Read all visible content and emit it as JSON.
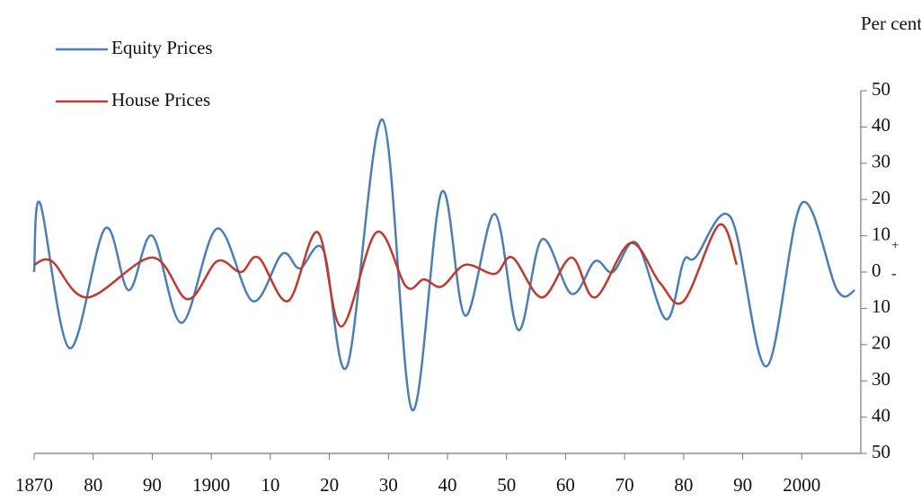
{
  "chart_data": {
    "type": "line",
    "y_label": "Per cent",
    "y_sign_labels": {
      "above": "+",
      "below": "-"
    },
    "legend": "top-left",
    "xlim": [
      1870,
      2010
    ],
    "xticks": [
      1870,
      {
        "value": 1880,
        "label": "80"
      },
      {
        "value": 1890,
        "label": "90"
      },
      1900,
      {
        "value": 1910,
        "label": "10"
      },
      {
        "value": 1920,
        "label": "20"
      },
      {
        "value": 1930,
        "label": "30"
      },
      {
        "value": 1940,
        "label": "40"
      },
      {
        "value": 1950,
        "label": "50"
      },
      {
        "value": 1960,
        "label": "60"
      },
      {
        "value": 1970,
        "label": "70"
      },
      {
        "value": 1980,
        "label": "80"
      },
      {
        "value": 1990,
        "label": "90"
      },
      2000
    ],
    "ylim": [
      -50,
      50
    ],
    "yticks": [
      50,
      40,
      30,
      20,
      10,
      0,
      {
        "value": -10,
        "label": "10"
      },
      {
        "value": -20,
        "label": "20"
      },
      {
        "value": -30,
        "label": "30"
      },
      {
        "value": -40,
        "label": "40"
      },
      {
        "value": -50,
        "label": "50"
      }
    ],
    "series": [
      {
        "name": "Equity Prices",
        "color": "#4a7ebb",
        "x": [
          1870,
          1871,
          1876,
          1882,
          1886,
          1890,
          1895,
          1901,
          1907,
          1912,
          1915,
          1919,
          1923,
          1929,
          1934,
          1939,
          1943,
          1948,
          1952,
          1956,
          1961,
          1965,
          1968,
          1972,
          1977,
          1980,
          1982,
          1988,
          1994,
          2000,
          2006,
          2009
        ],
        "values": [
          0,
          19,
          -21,
          12,
          -5,
          10,
          -14,
          12,
          -8,
          5,
          1,
          6,
          -26,
          42,
          -38,
          22,
          -12,
          16,
          -16,
          9,
          -6,
          3,
          0,
          8,
          -13,
          3,
          4,
          15,
          -26,
          19,
          -5,
          -5
        ]
      },
      {
        "name": "House Prices",
        "color": "#c0392b",
        "x": [
          1870,
          1873,
          1879,
          1890,
          1896,
          1901,
          1905,
          1908,
          1913,
          1918,
          1922,
          1928,
          1933,
          1936,
          1939,
          1943,
          1948,
          1951,
          1956,
          1961,
          1965,
          1971,
          1976,
          1980,
          1986,
          1989
        ],
        "values": [
          2,
          3,
          -7,
          4,
          -7.5,
          3,
          0,
          4,
          -8,
          11,
          -15,
          11,
          -4,
          -2,
          -4,
          2,
          -0.5,
          4,
          -7,
          4,
          -7,
          8,
          -3,
          -8,
          13,
          2
        ]
      }
    ]
  }
}
